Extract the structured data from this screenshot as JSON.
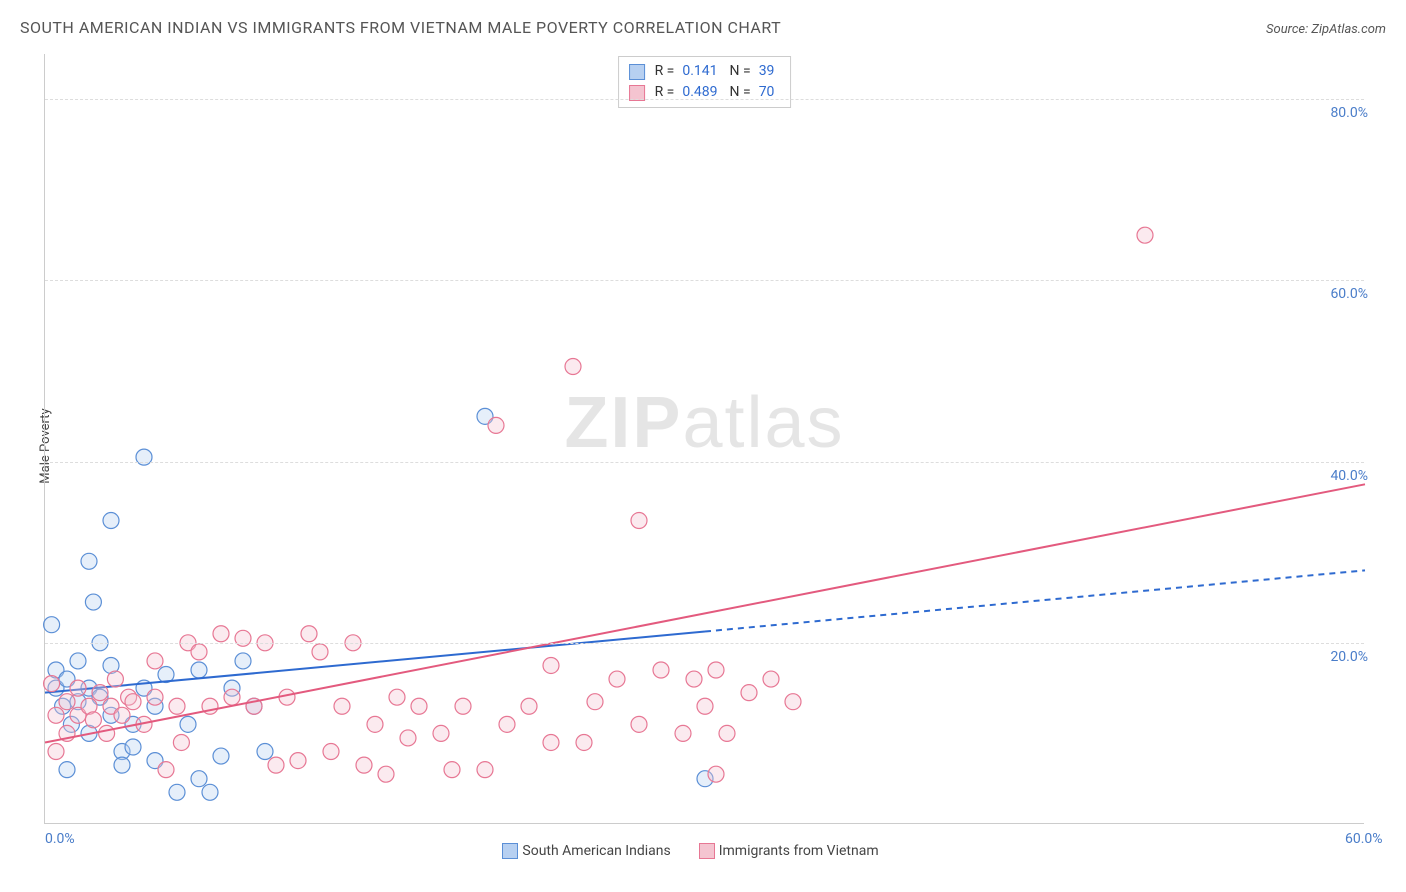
{
  "title": "SOUTH AMERICAN INDIAN VS IMMIGRANTS FROM VIETNAM MALE POVERTY CORRELATION CHART",
  "source_label": "Source: ZipAtlas.com",
  "y_axis_label": "Male Poverty",
  "watermark_a": "ZIP",
  "watermark_b": "atlas",
  "chart": {
    "type": "scatter",
    "xlim": [
      0,
      60
    ],
    "ylim": [
      0,
      85
    ],
    "x_ticks": [
      {
        "v": 0,
        "l": "0.0%"
      },
      {
        "v": 60,
        "l": "60.0%"
      }
    ],
    "y_ticks": [
      {
        "v": 20,
        "l": "20.0%"
      },
      {
        "v": 40,
        "l": "40.0%"
      },
      {
        "v": 60,
        "l": "60.0%"
      },
      {
        "v": 80,
        "l": "80.0%"
      }
    ],
    "gridlines_y": [
      20,
      40,
      60,
      80
    ],
    "background_color": "#ffffff",
    "grid_color": "#dddddd",
    "marker_radius": 8,
    "marker_opacity": 0.35,
    "marker_stroke_width": 1.2,
    "series": [
      {
        "name": "South American Indians",
        "color_fill": "#b7d0f1",
        "color_stroke": "#5b8fd6",
        "R": "0.141",
        "N": "39",
        "trend": {
          "x0": 0,
          "y0": 14.5,
          "x1": 60,
          "y1": 28,
          "solid_until_x": 30,
          "color": "#2e6ad0",
          "width": 2
        },
        "points": [
          [
            0.3,
            22
          ],
          [
            0.5,
            17
          ],
          [
            0.5,
            15
          ],
          [
            0.8,
            13
          ],
          [
            1,
            6
          ],
          [
            1,
            16
          ],
          [
            1.2,
            11
          ],
          [
            1.5,
            13.5
          ],
          [
            1.5,
            18
          ],
          [
            2,
            29
          ],
          [
            2,
            15
          ],
          [
            2,
            10
          ],
          [
            2.2,
            24.5
          ],
          [
            2.5,
            20
          ],
          [
            2.5,
            14
          ],
          [
            3,
            33.5
          ],
          [
            3,
            17.5
          ],
          [
            3,
            12
          ],
          [
            3.5,
            8
          ],
          [
            3.5,
            6.5
          ],
          [
            4,
            11
          ],
          [
            4,
            8.5
          ],
          [
            4.5,
            40.5
          ],
          [
            4.5,
            15
          ],
          [
            5,
            13
          ],
          [
            5,
            7
          ],
          [
            5.5,
            16.5
          ],
          [
            6,
            3.5
          ],
          [
            6.5,
            11
          ],
          [
            7,
            5
          ],
          [
            7,
            17
          ],
          [
            7.5,
            3.5
          ],
          [
            8,
            7.5
          ],
          [
            8.5,
            15
          ],
          [
            9,
            18
          ],
          [
            9.5,
            13
          ],
          [
            10,
            8
          ],
          [
            20,
            45
          ],
          [
            30,
            5
          ]
        ]
      },
      {
        "name": "Immigrants from Vietnam",
        "color_fill": "#f4c4d0",
        "color_stroke": "#e77794",
        "R": "0.489",
        "N": "70",
        "trend": {
          "x0": 0,
          "y0": 9,
          "x1": 60,
          "y1": 37.5,
          "solid_until_x": 60,
          "color": "#e35a7e",
          "width": 2
        },
        "points": [
          [
            0.3,
            15.5
          ],
          [
            0.5,
            8
          ],
          [
            0.5,
            12
          ],
          [
            1,
            13.5
          ],
          [
            1,
            10
          ],
          [
            1.5,
            15
          ],
          [
            1.5,
            12
          ],
          [
            2,
            13
          ],
          [
            2.2,
            11.5
          ],
          [
            2.5,
            14.5
          ],
          [
            2.8,
            10
          ],
          [
            3,
            13
          ],
          [
            3.2,
            16
          ],
          [
            3.5,
            12
          ],
          [
            3.8,
            14
          ],
          [
            4,
            13.5
          ],
          [
            4.5,
            11
          ],
          [
            5,
            14
          ],
          [
            5,
            18
          ],
          [
            5.5,
            6
          ],
          [
            6,
            13
          ],
          [
            6.2,
            9
          ],
          [
            6.5,
            20
          ],
          [
            7,
            19
          ],
          [
            7.5,
            13
          ],
          [
            8,
            21
          ],
          [
            8.5,
            14
          ],
          [
            9,
            20.5
          ],
          [
            9.5,
            13
          ],
          [
            10,
            20
          ],
          [
            10.5,
            6.5
          ],
          [
            11,
            14
          ],
          [
            11.5,
            7
          ],
          [
            12,
            21
          ],
          [
            12.5,
            19
          ],
          [
            13,
            8
          ],
          [
            13.5,
            13
          ],
          [
            14,
            20
          ],
          [
            14.5,
            6.5
          ],
          [
            15,
            11
          ],
          [
            15.5,
            5.5
          ],
          [
            16,
            14
          ],
          [
            16.5,
            9.5
          ],
          [
            17,
            13
          ],
          [
            18,
            10
          ],
          [
            18.5,
            6
          ],
          [
            19,
            13
          ],
          [
            20,
            6
          ],
          [
            20.5,
            44
          ],
          [
            21,
            11
          ],
          [
            22,
            13
          ],
          [
            23,
            9
          ],
          [
            23,
            17.5
          ],
          [
            24,
            50.5
          ],
          [
            24.5,
            9
          ],
          [
            25,
            13.5
          ],
          [
            26,
            16
          ],
          [
            27,
            33.5
          ],
          [
            27,
            11
          ],
          [
            28,
            17
          ],
          [
            29,
            10
          ],
          [
            29.5,
            16
          ],
          [
            30,
            13
          ],
          [
            30.5,
            17
          ],
          [
            31,
            10
          ],
          [
            32,
            14.5
          ],
          [
            33,
            16
          ],
          [
            34,
            13.5
          ],
          [
            50,
            65
          ],
          [
            30.5,
            5.5
          ]
        ]
      }
    ]
  },
  "legend": {
    "stats_label_r": "R =",
    "stats_label_n": "N ="
  }
}
